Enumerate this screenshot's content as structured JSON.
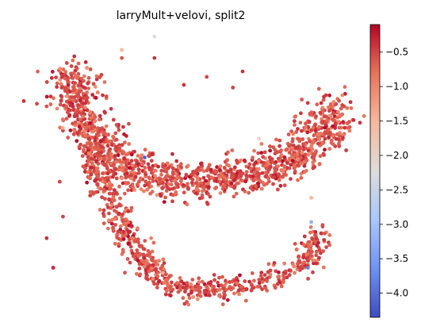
{
  "chart_data": {
    "type": "scatter",
    "title": "larryMult+velovi, split2",
    "xlabel": "",
    "ylabel": "",
    "axes_visible": false,
    "colormap": "coolwarm",
    "color_range": [
      -4.35,
      -0.1
    ],
    "colorbar_ticks": [
      {
        "value": -0.5,
        "label": "−0.5"
      },
      {
        "value": -1.0,
        "label": "−1.0"
      },
      {
        "value": -1.5,
        "label": "−1.5"
      },
      {
        "value": -2.0,
        "label": "−2.0"
      },
      {
        "value": -2.5,
        "label": "−2.5"
      },
      {
        "value": -3.0,
        "label": "−3.0"
      },
      {
        "value": -3.5,
        "label": "−3.5"
      },
      {
        "value": -4.0,
        "label": "−4.0"
      }
    ],
    "colorbar_colors": [
      "#3b4cc0",
      "#6f92f3",
      "#aac7fd",
      "#dddcdc",
      "#f7b89c",
      "#e7745b",
      "#b40426"
    ],
    "embedding": {
      "spine_upper": [
        [
          0.13,
          0.86
        ],
        [
          0.16,
          0.82
        ],
        [
          0.14,
          0.77
        ],
        [
          0.18,
          0.72
        ],
        [
          0.2,
          0.66
        ],
        [
          0.24,
          0.6
        ],
        [
          0.3,
          0.52
        ],
        [
          0.38,
          0.48
        ],
        [
          0.46,
          0.47
        ],
        [
          0.54,
          0.46
        ],
        [
          0.62,
          0.47
        ],
        [
          0.7,
          0.49
        ],
        [
          0.78,
          0.52
        ],
        [
          0.85,
          0.57
        ],
        [
          0.9,
          0.62
        ],
        [
          0.93,
          0.68
        ],
        [
          0.96,
          0.73
        ]
      ],
      "spine_lower": [
        [
          0.2,
          0.6
        ],
        [
          0.22,
          0.52
        ],
        [
          0.25,
          0.45
        ],
        [
          0.27,
          0.38
        ],
        [
          0.3,
          0.3
        ],
        [
          0.33,
          0.22
        ],
        [
          0.38,
          0.14
        ],
        [
          0.45,
          0.08
        ],
        [
          0.53,
          0.05
        ],
        [
          0.62,
          0.06
        ],
        [
          0.71,
          0.08
        ],
        [
          0.79,
          0.11
        ],
        [
          0.86,
          0.16
        ],
        [
          0.89,
          0.22
        ],
        [
          0.9,
          0.28
        ]
      ],
      "spread_upper": 0.035,
      "spread_lower": 0.022,
      "n_upper": 1400,
      "n_lower": 700,
      "value_mean": -0.6,
      "value_sd": 0.2,
      "highlights": [
        {
          "x": 0.37,
          "y": 0.55,
          "value": -4.1
        },
        {
          "x": 0.87,
          "y": 0.14,
          "value": -3.8
        },
        {
          "x": 0.88,
          "y": 0.31,
          "value": -3.2
        },
        {
          "x": 0.4,
          "y": 1.0,
          "value": -2.2
        },
        {
          "x": 0.72,
          "y": 0.62,
          "value": -2.0
        },
        {
          "x": 0.3,
          "y": 0.95,
          "value": -1.5
        },
        {
          "x": 0.12,
          "y": 0.66,
          "value": -1.4
        },
        {
          "x": 0.88,
          "y": 0.4,
          "value": -1.5
        }
      ],
      "outliers": [
        {
          "x": 0.0,
          "y": 0.76,
          "value": -0.4
        },
        {
          "x": 0.04,
          "y": 0.75,
          "value": -0.5
        },
        {
          "x": 0.07,
          "y": 0.74,
          "value": -0.6
        },
        {
          "x": 0.13,
          "y": 0.74,
          "value": -0.7
        },
        {
          "x": 0.12,
          "y": 0.65,
          "value": -0.5
        },
        {
          "x": 0.17,
          "y": 0.59,
          "value": -0.6
        },
        {
          "x": 0.11,
          "y": 0.46,
          "value": -0.5
        },
        {
          "x": 0.12,
          "y": 0.33,
          "value": -0.5
        },
        {
          "x": 0.07,
          "y": 0.25,
          "value": -0.4
        },
        {
          "x": 0.09,
          "y": 0.14,
          "value": -0.3
        },
        {
          "x": 0.4,
          "y": 0.92,
          "value": -0.4
        },
        {
          "x": 0.49,
          "y": 0.82,
          "value": -0.4
        },
        {
          "x": 0.64,
          "y": 0.81,
          "value": -0.5
        },
        {
          "x": 0.67,
          "y": 0.87,
          "value": -0.4
        },
        {
          "x": 0.56,
          "y": 0.85,
          "value": -0.5
        },
        {
          "x": 0.3,
          "y": 0.92,
          "value": -0.6
        }
      ]
    }
  }
}
